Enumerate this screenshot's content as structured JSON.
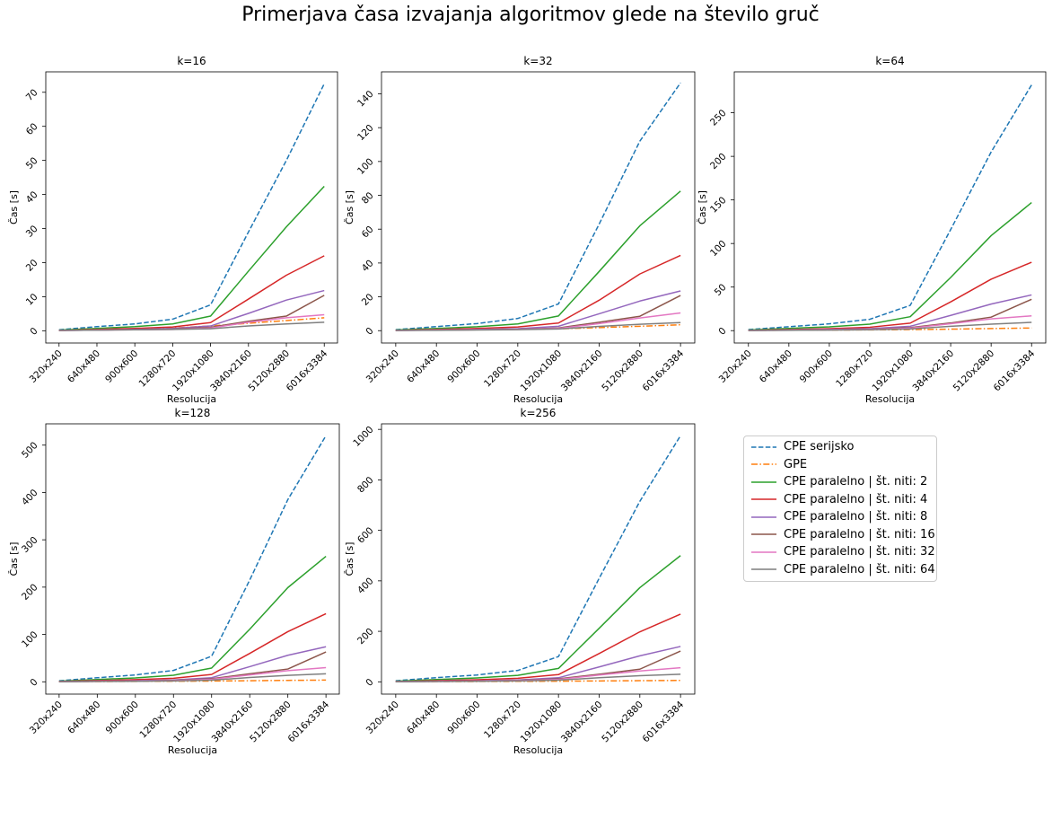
{
  "figure": {
    "title": "Primerjava časa izvajanja algoritmov glede na število gruč"
  },
  "legend": [
    {
      "name": "CPE serijsko",
      "color": "#1f77b4",
      "dash": "dashed"
    },
    {
      "name": "GPE",
      "color": "#ff7f0e",
      "dash": "dashdot"
    },
    {
      "name": "CPE paralelno | št. niti: 2",
      "color": "#2ca02c",
      "dash": "solid"
    },
    {
      "name": "CPE paralelno | št. niti: 4",
      "color": "#d62728",
      "dash": "solid"
    },
    {
      "name": "CPE paralelno | št. niti: 8",
      "color": "#9467bd",
      "dash": "solid"
    },
    {
      "name": "CPE paralelno | št. niti: 16",
      "color": "#8c564b",
      "dash": "solid"
    },
    {
      "name": "CPE paralelno | št. niti: 32",
      "color": "#e377c2",
      "dash": "solid"
    },
    {
      "name": "CPE paralelno | št. niti: 64",
      "color": "#7f7f7f",
      "dash": "solid"
    }
  ],
  "chart_data": [
    {
      "type": "line",
      "title": "k=16",
      "xlabel": "Resolucija",
      "ylabel": "Čas [s]",
      "categories": [
        "320x240",
        "640x480",
        "900x600",
        "1280x720",
        "1920x1080",
        "3840x2160",
        "5120x2880",
        "6016x3384"
      ],
      "yticks": [
        0,
        10,
        20,
        30,
        40,
        50,
        60,
        70
      ],
      "ylim": [
        -3.6,
        76.0
      ],
      "series": [
        {
          "name": "CPE serijsko",
          "values": [
            0.3,
            1.2,
            2.0,
            3.4,
            7.6,
            29.0,
            50.0,
            72.5
          ]
        },
        {
          "name": "GPE",
          "values": [
            0.1,
            0.3,
            0.5,
            0.8,
            1.4,
            2.2,
            3.0,
            3.8
          ]
        },
        {
          "name": "CPE paralelno | št. niti: 2",
          "values": [
            0.2,
            0.7,
            1.2,
            2.0,
            4.3,
            17.5,
            30.5,
            42.4
          ]
        },
        {
          "name": "CPE paralelno | št. niti: 4",
          "values": [
            0.1,
            0.4,
            0.7,
            1.1,
            2.4,
            9.3,
            16.3,
            22.0
          ]
        },
        {
          "name": "CPE paralelno | št. niti: 8",
          "values": [
            0.1,
            0.2,
            0.4,
            0.7,
            1.4,
            5.1,
            9.0,
            11.8
          ]
        },
        {
          "name": "CPE paralelno | št. niti: 16",
          "values": [
            0.1,
            0.2,
            0.3,
            0.5,
            1.0,
            2.8,
            4.3,
            10.4
          ]
        },
        {
          "name": "CPE paralelno | št. niti: 32",
          "values": [
            0.1,
            0.2,
            0.3,
            0.4,
            0.8,
            2.5,
            3.8,
            4.7
          ]
        },
        {
          "name": "CPE paralelno | št. niti: 64",
          "values": [
            0.1,
            0.2,
            0.3,
            0.4,
            0.6,
            1.4,
            2.0,
            2.5
          ]
        }
      ]
    },
    {
      "type": "line",
      "title": "k=32",
      "xlabel": "Resolucija",
      "ylabel": "Čas [s]",
      "categories": [
        "320x240",
        "640x480",
        "900x600",
        "1280x720",
        "1920x1080",
        "3840x2160",
        "5120x2880",
        "6016x3384"
      ],
      "yticks": [
        0,
        20,
        40,
        60,
        80,
        100,
        120,
        140
      ],
      "ylim": [
        -7.3,
        153.0
      ],
      "series": [
        {
          "name": "CPE serijsko",
          "values": [
            0.6,
            2.4,
            4.2,
            7.2,
            15.8,
            63.0,
            112.0,
            146.5
          ]
        },
        {
          "name": "GPE",
          "values": [
            0.2,
            0.4,
            0.6,
            0.8,
            1.1,
            1.8,
            2.6,
            3.5
          ]
        },
        {
          "name": "CPE paralelno | št. niti: 2",
          "values": [
            0.4,
            1.3,
            2.3,
            4.0,
            8.7,
            35.0,
            62.0,
            82.5
          ]
        },
        {
          "name": "CPE paralelno | št. niti: 4",
          "values": [
            0.2,
            0.7,
            1.3,
            2.2,
            4.5,
            18.0,
            33.5,
            44.5
          ]
        },
        {
          "name": "CPE paralelno | št. niti: 8",
          "values": [
            0.1,
            0.4,
            0.7,
            1.2,
            2.6,
            10.0,
            17.5,
            23.5
          ]
        },
        {
          "name": "CPE paralelno | št. niti: 16",
          "values": [
            0.1,
            0.3,
            0.5,
            0.8,
            1.6,
            5.0,
            8.5,
            20.8
          ]
        },
        {
          "name": "CPE paralelno | št. niti: 32",
          "values": [
            0.1,
            0.3,
            0.5,
            0.7,
            1.3,
            4.2,
            7.5,
            10.5
          ]
        },
        {
          "name": "CPE paralelno | št. niti: 64",
          "values": [
            0.1,
            0.2,
            0.4,
            0.6,
            1.0,
            2.5,
            3.8,
            4.8
          ]
        }
      ]
    },
    {
      "type": "line",
      "title": "k=64",
      "xlabel": "Resolucija",
      "ylabel": "Čas [s]",
      "categories": [
        "320x240",
        "640x480",
        "900x600",
        "1280x720",
        "1920x1080",
        "3840x2160",
        "5120x2880",
        "6016x3384"
      ],
      "yticks": [
        0,
        50,
        100,
        150,
        200,
        250
      ],
      "ylim": [
        -14.2,
        297.0
      ],
      "series": [
        {
          "name": "CPE serijsko",
          "values": [
            1.2,
            4.5,
            7.8,
            13.0,
            29.0,
            116.0,
            205.0,
            282.0
          ]
        },
        {
          "name": "GPE",
          "values": [
            0.2,
            0.5,
            0.7,
            0.9,
            1.2,
            1.7,
            2.4,
            3.0
          ]
        },
        {
          "name": "CPE paralelno | št. niti: 2",
          "values": [
            0.7,
            2.6,
            4.4,
            7.4,
            16.0,
            61.0,
            109.0,
            147.0
          ]
        },
        {
          "name": "CPE paralelno | št. niti: 4",
          "values": [
            0.4,
            1.3,
            2.3,
            3.9,
            8.6,
            33.0,
            59.0,
            78.5
          ]
        },
        {
          "name": "CPE paralelno | št. niti: 8",
          "values": [
            0.2,
            0.8,
            1.4,
            2.3,
            5.0,
            17.5,
            30.5,
            41.0
          ]
        },
        {
          "name": "CPE paralelno | št. niti: 16",
          "values": [
            0.2,
            0.6,
            1.0,
            1.7,
            3.4,
            8.8,
            15.5,
            36.0
          ]
        },
        {
          "name": "CPE paralelno | št. niti: 32",
          "values": [
            0.2,
            0.5,
            0.9,
            1.4,
            2.8,
            8.0,
            13.5,
            17.0
          ]
        },
        {
          "name": "CPE paralelno | št. niti: 64",
          "values": [
            0.1,
            0.4,
            0.6,
            1.0,
            1.9,
            5.0,
            7.5,
            9.5
          ]
        }
      ]
    },
    {
      "type": "line",
      "title": "k=128",
      "xlabel": "Resolucija",
      "ylabel": "Čas [s]",
      "categories": [
        "320x240",
        "640x480",
        "900x600",
        "1280x720",
        "1920x1080",
        "3840x2160",
        "5120x2880",
        "6016x3384"
      ],
      "yticks": [
        0,
        100,
        200,
        300,
        400,
        500
      ],
      "ylim": [
        -26.0,
        545.0
      ],
      "series": [
        {
          "name": "CPE serijsko",
          "values": [
            2.2,
            8.5,
            14.5,
            24.0,
            54.0,
            215.0,
            385.0,
            520.0
          ]
        },
        {
          "name": "GPE",
          "values": [
            0.3,
            0.6,
            0.9,
            1.2,
            1.6,
            2.2,
            3.0,
            3.6
          ]
        },
        {
          "name": "CPE paralelno | št. niti: 2",
          "values": [
            1.3,
            4.9,
            8.2,
            13.8,
            29.0,
            111.0,
            199.0,
            265.0
          ]
        },
        {
          "name": "CPE paralelno | št. niti: 4",
          "values": [
            0.7,
            2.6,
            4.5,
            7.4,
            15.5,
            60.0,
            106.0,
            144.0
          ]
        },
        {
          "name": "CPE paralelno | št. niti: 8",
          "values": [
            0.4,
            1.4,
            2.4,
            4.0,
            8.7,
            32.0,
            56.0,
            74.0
          ]
        },
        {
          "name": "CPE paralelno | št. niti: 16",
          "values": [
            0.3,
            1.1,
            1.8,
            3.0,
            6.5,
            17.0,
            27.0,
            63.0
          ]
        },
        {
          "name": "CPE paralelno | št. niti: 32",
          "values": [
            0.3,
            0.9,
            1.5,
            2.5,
            5.3,
            14.5,
            23.5,
            30.0
          ]
        },
        {
          "name": "CPE paralelno | št. niti: 64",
          "values": [
            0.2,
            0.7,
            1.1,
            1.8,
            3.5,
            9.0,
            13.5,
            17.0
          ]
        }
      ]
    },
    {
      "type": "line",
      "title": "k=256",
      "xlabel": "Resolucija",
      "ylabel": "Čas [s]",
      "categories": [
        "320x240",
        "640x480",
        "900x600",
        "1280x720",
        "1920x1080",
        "3840x2160",
        "5120x2880",
        "6016x3384"
      ],
      "yticks": [
        0,
        200,
        400,
        600,
        800,
        1000
      ],
      "ylim": [
        -48.7,
        1022.0
      ],
      "series": [
        {
          "name": "CPE serijsko",
          "values": [
            4.2,
            16.5,
            27.0,
            45.0,
            100.0,
            410.0,
            715.0,
            975.0
          ]
        },
        {
          "name": "GPE",
          "values": [
            0.4,
            0.9,
            1.3,
            1.8,
            2.5,
            3.5,
            4.5,
            5.5
          ]
        },
        {
          "name": "CPE paralelno | št. niti: 2",
          "values": [
            2.4,
            9.0,
            15.5,
            25.5,
            53.0,
            212.0,
            373.0,
            500.0
          ]
        },
        {
          "name": "CPE paralelno | št. niti: 4",
          "values": [
            1.3,
            4.8,
            8.2,
            13.8,
            28.5,
            112.0,
            198.0,
            268.0
          ]
        },
        {
          "name": "CPE paralelno | št. niti: 8",
          "values": [
            0.7,
            2.6,
            4.4,
            7.4,
            16.0,
            59.0,
            103.0,
            140.0
          ]
        },
        {
          "name": "CPE paralelno | št. niti: 16",
          "values": [
            0.5,
            1.9,
            3.2,
            5.4,
            12.0,
            30.0,
            50.0,
            122.0
          ]
        },
        {
          "name": "CPE paralelno | št. niti: 32",
          "values": [
            0.5,
            1.6,
            2.7,
            4.5,
            9.6,
            27.0,
            43.0,
            56.0
          ]
        },
        {
          "name": "CPE paralelno | št. niti: 64",
          "values": [
            0.3,
            1.2,
            2.0,
            3.3,
            6.5,
            16.0,
            24.0,
            30.0
          ]
        }
      ]
    }
  ]
}
